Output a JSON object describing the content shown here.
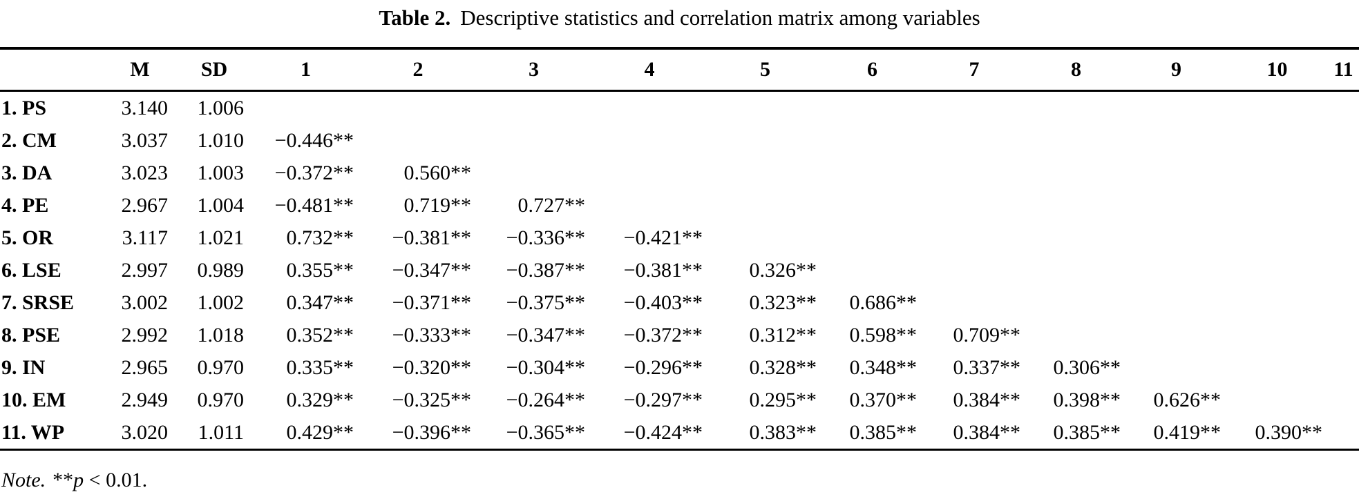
{
  "title": {
    "label": "Table 2.",
    "text": "Descriptive statistics and correlation matrix among variables"
  },
  "table": {
    "headers": [
      "",
      "M",
      "SD",
      "1",
      "2",
      "3",
      "4",
      "5",
      "6",
      "7",
      "8",
      "9",
      "10",
      "11"
    ],
    "rows": [
      {
        "label": "1. PS",
        "m": "3.140",
        "sd": "1.006",
        "r": []
      },
      {
        "label": "2. CM",
        "m": "3.037",
        "sd": "1.010",
        "r": [
          "−0.446**"
        ]
      },
      {
        "label": "3. DA",
        "m": "3.023",
        "sd": "1.003",
        "r": [
          "−0.372**",
          "0.560**"
        ]
      },
      {
        "label": "4. PE",
        "m": "2.967",
        "sd": "1.004",
        "r": [
          "−0.481**",
          "0.719**",
          "0.727**"
        ]
      },
      {
        "label": "5. OR",
        "m": "3.117",
        "sd": "1.021",
        "r": [
          "0.732**",
          "−0.381**",
          "−0.336**",
          "−0.421**"
        ]
      },
      {
        "label": "6. LSE",
        "m": "2.997",
        "sd": "0.989",
        "r": [
          "0.355**",
          "−0.347**",
          "−0.387**",
          "−0.381**",
          "0.326**"
        ]
      },
      {
        "label": "7. SRSE",
        "m": "3.002",
        "sd": "1.002",
        "r": [
          "0.347**",
          "−0.371**",
          "−0.375**",
          "−0.403**",
          "0.323**",
          "0.686**"
        ]
      },
      {
        "label": "8. PSE",
        "m": "2.992",
        "sd": "1.018",
        "r": [
          "0.352**",
          "−0.333**",
          "−0.347**",
          "−0.372**",
          "0.312**",
          "0.598**",
          "0.709**"
        ]
      },
      {
        "label": "9. IN",
        "m": "2.965",
        "sd": "0.970",
        "r": [
          "0.335**",
          "−0.320**",
          "−0.304**",
          "−0.296**",
          "0.328**",
          "0.348**",
          "0.337**",
          "0.306**"
        ]
      },
      {
        "label": "10. EM",
        "m": "2.949",
        "sd": "0.970",
        "r": [
          "0.329**",
          "−0.325**",
          "−0.264**",
          "−0.297**",
          "0.295**",
          "0.370**",
          "0.384**",
          "0.398**",
          "0.626**"
        ]
      },
      {
        "label": "11. WP",
        "m": "3.020",
        "sd": "1.011",
        "r": [
          "0.429**",
          "−0.396**",
          "−0.365**",
          "−0.424**",
          "0.383**",
          "0.385**",
          "0.384**",
          "0.385**",
          "0.419**",
          "0.390**"
        ]
      }
    ]
  },
  "note": {
    "label": "Note.",
    "stars": "**",
    "p": "p",
    "rest": " < 0.01."
  }
}
